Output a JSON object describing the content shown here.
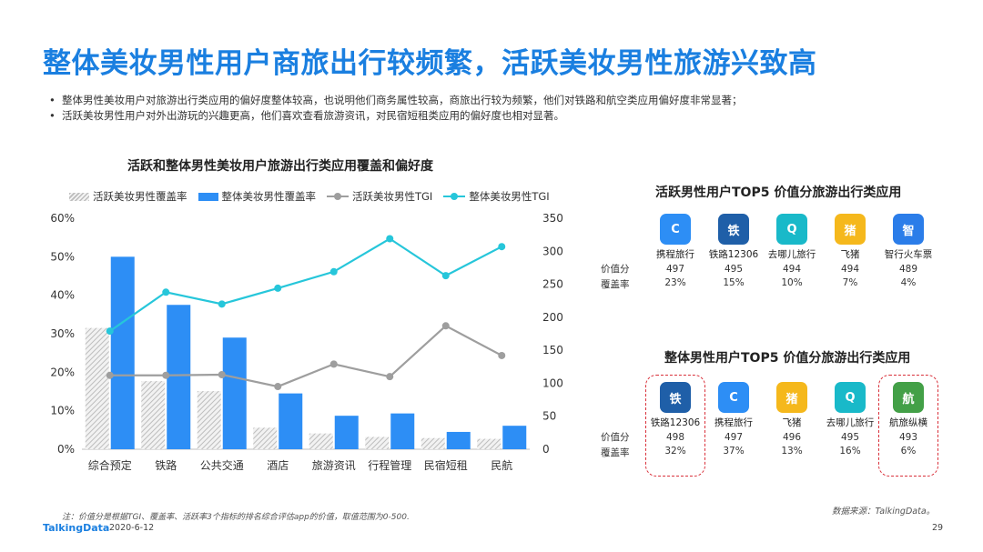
{
  "title": "整体美妆男性用户商旅出行较频繁，活跃美妆男性旅游兴致高",
  "bullets": [
    "整体男性美妆用户对旅游出行类应用的偏好度整体较高，也说明他们商务属性较高，商旅出行较为频繁，他们对铁路和航空类应用偏好度非常显著；",
    "活跃美妆男性用户对外出游玩的兴趣更高，他们喜欢查看旅游资讯，对民宿短租类应用的偏好度也相对显著。"
  ],
  "chart_data": {
    "type": "bar",
    "title": "活跃和整体男性美妆用户旅游出行类应用覆盖和偏好度",
    "categories": [
      "综合预定",
      "铁路",
      "公共交通",
      "酒店",
      "旅游资讯",
      "行程管理",
      "民宿短租",
      "民航"
    ],
    "series": [
      {
        "name": "活跃美妆男性覆盖率",
        "type": "bar",
        "axis": "left",
        "values": [
          31.5,
          17.7,
          15.1,
          5.6,
          4.1,
          3.2,
          2.9,
          2.7
        ]
      },
      {
        "name": "整体美妆男性覆盖率",
        "type": "bar",
        "axis": "left",
        "values": [
          50.0,
          37.5,
          29.0,
          14.5,
          8.7,
          9.3,
          4.5,
          6.1
        ]
      },
      {
        "name": "活跃美妆男性TGI",
        "type": "line",
        "axis": "right",
        "values": [
          112,
          112,
          113,
          95,
          129,
          110,
          187,
          142
        ]
      },
      {
        "name": "整体美妆男性TGI",
        "type": "line",
        "axis": "right",
        "values": [
          179,
          238,
          220,
          244,
          269,
          319,
          263,
          307
        ]
      }
    ],
    "y_left": {
      "min": 0,
      "max": 60,
      "ticks": [
        "0%",
        "10%",
        "20%",
        "30%",
        "40%",
        "50%",
        "60%"
      ]
    },
    "y_right": {
      "min": 0,
      "max": 350,
      "ticks": [
        "0",
        "50",
        "100",
        "150",
        "200",
        "250",
        "300",
        "350"
      ]
    },
    "legend_position": "top",
    "grid": false,
    "colors": {
      "hatch": "#bdbdbd",
      "bar": "#2d8ef5",
      "line_active": "#9e9e9e",
      "line_overall": "#26c6da"
    }
  },
  "active_panel": {
    "title": "活跃男性用户TOP5 价值分旅游出行类应用",
    "row_labels": [
      "价值分",
      "覆盖率"
    ],
    "apps": [
      {
        "name": "携程旅行",
        "score": "497",
        "coverage": "23%",
        "icon": "ctrip-icon",
        "color": "#2d8ef5",
        "glyph": "C"
      },
      {
        "name": "铁路12306",
        "score": "495",
        "coverage": "15%",
        "icon": "railway-12306-icon",
        "color": "#1f5fa8",
        "glyph": "铁"
      },
      {
        "name": "去哪儿旅行",
        "score": "494",
        "coverage": "10%",
        "icon": "qunar-icon",
        "color": "#19b9c9",
        "glyph": "Q"
      },
      {
        "name": "飞猪",
        "score": "494",
        "coverage": "7%",
        "icon": "fliggy-icon",
        "color": "#f5b81c",
        "glyph": "猪"
      },
      {
        "name": "智行火车票",
        "score": "489",
        "coverage": "4%",
        "icon": "zhixing-train-icon",
        "color": "#2b7de9",
        "glyph": "智"
      }
    ]
  },
  "overall_panel": {
    "title": "整体男性用户TOP5 价值分旅游出行类应用",
    "row_labels": [
      "价值分",
      "覆盖率"
    ],
    "apps": [
      {
        "name": "铁路12306",
        "score": "498",
        "coverage": "32%",
        "icon": "railway-12306-icon",
        "color": "#1f5fa8",
        "glyph": "铁",
        "highlight": true
      },
      {
        "name": "携程旅行",
        "score": "497",
        "coverage": "37%",
        "icon": "ctrip-icon",
        "color": "#2d8ef5",
        "glyph": "C"
      },
      {
        "name": "飞猪",
        "score": "496",
        "coverage": "13%",
        "icon": "fliggy-icon",
        "color": "#f5b81c",
        "glyph": "猪"
      },
      {
        "name": "去哪儿旅行",
        "score": "495",
        "coverage": "16%",
        "icon": "qunar-icon",
        "color": "#19b9c9",
        "glyph": "Q"
      },
      {
        "name": "航旅纵横",
        "score": "493",
        "coverage": "6%",
        "icon": "hanglv-zongheng-icon",
        "color": "#43a047",
        "glyph": "航",
        "highlight": true
      }
    ]
  },
  "footnote": "注：价值分是根据TGI、覆盖率、活跃率3个指标的排名综合评估app的价值，取值范围为0-500.",
  "source": "数据来源：TalkingData。",
  "footer": {
    "brand": "TalkingData",
    "date": "2020-6-12",
    "page": "29"
  }
}
